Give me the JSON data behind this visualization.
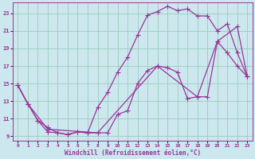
{
  "xlabel": "Windchill (Refroidissement éolien,°C)",
  "bg_color": "#cce8ee",
  "line_color": "#993399",
  "grid_color": "#99ccbb",
  "xlim": [
    -0.5,
    23.5
  ],
  "ylim": [
    8.5,
    24.2
  ],
  "yticks": [
    9,
    11,
    13,
    15,
    17,
    19,
    21,
    23
  ],
  "xticks": [
    0,
    1,
    2,
    3,
    4,
    5,
    6,
    7,
    8,
    9,
    10,
    11,
    12,
    13,
    14,
    15,
    16,
    17,
    18,
    19,
    20,
    21,
    22,
    23
  ],
  "line1_x": [
    0,
    1,
    2,
    3,
    4,
    5,
    6,
    7,
    8,
    9,
    10,
    11,
    12,
    13,
    14,
    15,
    16,
    17,
    18,
    19,
    20,
    21,
    22,
    23
  ],
  "line1_y": [
    14.8,
    12.7,
    10.8,
    10.0,
    9.4,
    9.2,
    9.5,
    9.4,
    12.3,
    14.0,
    16.3,
    18.0,
    20.5,
    22.8,
    23.2,
    23.8,
    23.3,
    23.5,
    22.7,
    22.7,
    21.0,
    21.8,
    18.5,
    15.8
  ],
  "line2_x": [
    0,
    1,
    2,
    3,
    4,
    5,
    6,
    7,
    8,
    9,
    10,
    11,
    12,
    13,
    14,
    15,
    16,
    17,
    18,
    19,
    20,
    21,
    22,
    23
  ],
  "line2_y": [
    14.8,
    12.7,
    10.8,
    9.5,
    9.4,
    9.2,
    9.5,
    9.4,
    9.4,
    9.4,
    11.5,
    11.9,
    15.0,
    16.5,
    17.0,
    16.8,
    16.3,
    13.3,
    13.5,
    13.5,
    19.8,
    18.5,
    17.0,
    15.8
  ],
  "line3_x": [
    0,
    1,
    3,
    8,
    14,
    18,
    20,
    22,
    23
  ],
  "line3_y": [
    14.8,
    12.7,
    9.8,
    9.4,
    17.0,
    13.5,
    19.8,
    21.5,
    15.8
  ]
}
